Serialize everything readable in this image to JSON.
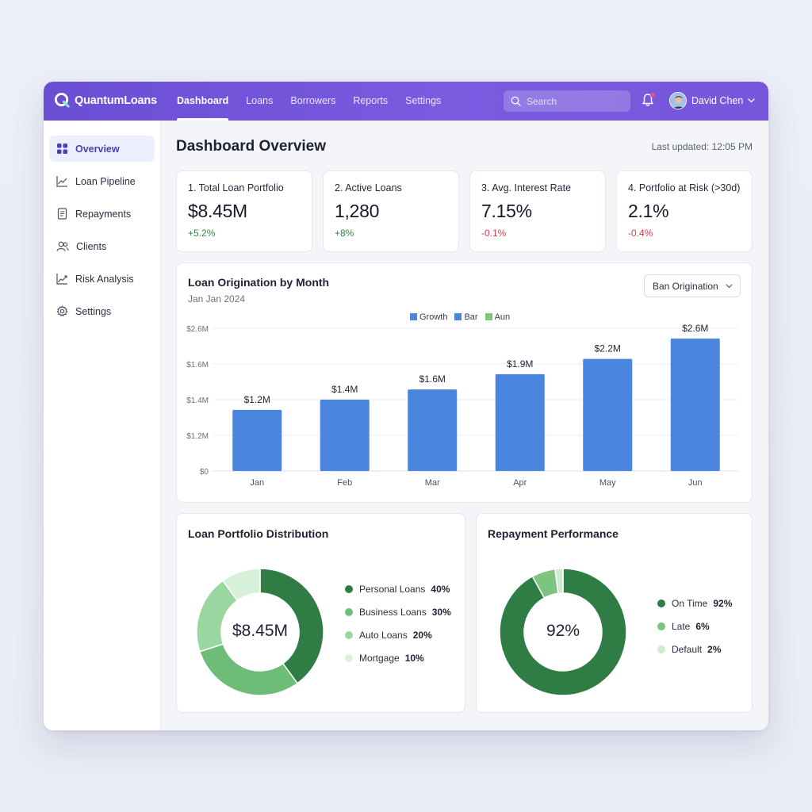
{
  "app": {
    "name": "QuantumLoans"
  },
  "nav": [
    "Dashboard",
    "Loans",
    "Borrowers",
    "Reports",
    "Settings"
  ],
  "search": {
    "placeholder": "Search"
  },
  "user": {
    "name": "David Chen"
  },
  "sidebar": {
    "items": [
      {
        "label": "Overview",
        "icon": "grid-icon",
        "active": true
      },
      {
        "label": "Loan Pipeline",
        "icon": "line-chart-icon"
      },
      {
        "label": "Repayments",
        "icon": "document-icon"
      },
      {
        "label": "Clients",
        "icon": "users-icon"
      },
      {
        "label": "Risk Analysis",
        "icon": "trend-icon"
      },
      {
        "label": "Settings",
        "icon": "gear-icon"
      }
    ]
  },
  "page": {
    "title": "Dashboard Overview",
    "last_updated": "Last updated: 12:05 PM"
  },
  "kpis": [
    {
      "label": "1. Total Loan Portfolio",
      "value": "$8.45M",
      "delta": "+5.2%",
      "trend": "up"
    },
    {
      "label": "2. Active Loans",
      "value": "1,280",
      "delta": "+8%",
      "trend": "up"
    },
    {
      "label": "3. Avg. Interest Rate",
      "value": "7.15%",
      "delta": "-0.1%",
      "trend": "down"
    },
    {
      "label": "4. Portfolio at Risk (>30d)",
      "value": "2.1%",
      "delta": "-0.4%",
      "trend": "down"
    }
  ],
  "origination": {
    "title": "Loan Origination by Month",
    "subtitle": "Jan Jan 2024",
    "dropdown": "Ban Origination",
    "legend": [
      {
        "name": "Growth",
        "color": "#4a86e0"
      },
      {
        "name": "Bar",
        "color": "#4a86e0"
      },
      {
        "name": "Aun",
        "color": "#7cc47f"
      }
    ]
  },
  "chart_data": {
    "type": "bar",
    "categories": [
      "Jan",
      "Feb",
      "Mar",
      "Apr",
      "May",
      "Jun"
    ],
    "values": [
      1.2,
      1.4,
      1.6,
      1.9,
      2.2,
      2.6
    ],
    "value_labels": [
      "$1.2M",
      "$1.4M",
      "$1.6M",
      "$1.9M",
      "$2.2M",
      "$2.6M"
    ],
    "y_tick_labels": [
      "$0",
      "$1.2M",
      "$1.4M",
      "$1.6M",
      "$2.6M"
    ],
    "ylim": [
      0,
      2.8
    ],
    "bar_color": "#4a86e0",
    "grid": true
  },
  "distribution": {
    "title": "Loan Portfolio Distribution",
    "center": "$8.45M",
    "slices": [
      {
        "label": "Personal Loans",
        "pct": "40%",
        "value": 40,
        "color": "#2f7d45"
      },
      {
        "label": "Business Loans",
        "pct": "30%",
        "value": 30,
        "color": "#6dbd78"
      },
      {
        "label": "Auto Loans",
        "pct": "20%",
        "value": 20,
        "color": "#9ad6a0"
      },
      {
        "label": "Mortgage",
        "pct": "10%",
        "value": 10,
        "color": "#d7f0d9"
      }
    ]
  },
  "repayment": {
    "title": "Repayment Performance",
    "center": "92%",
    "slices": [
      {
        "label": "On Time",
        "pct": "92%",
        "value": 92,
        "color": "#2f7d45"
      },
      {
        "label": "Late",
        "pct": "6%",
        "value": 6,
        "color": "#7cc47f"
      },
      {
        "label": "Default",
        "pct": "2%",
        "value": 2,
        "color": "#cdebd0"
      }
    ]
  }
}
